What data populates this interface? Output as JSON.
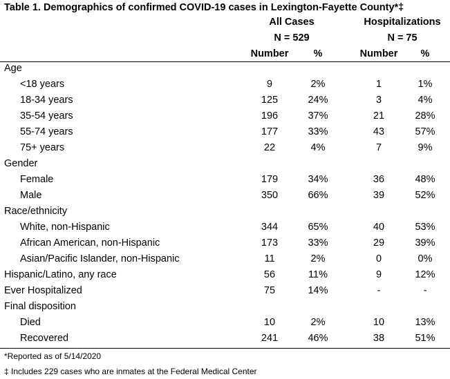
{
  "title": "Table 1. Demographics of confirmed COVID-19 cases in Lexington-Fayette County*‡",
  "groups": {
    "all_cases": {
      "label": "All Cases",
      "n": "N = 529"
    },
    "hospitalizations": {
      "label": "Hospitalizations",
      "n": "N = 75"
    }
  },
  "columns": {
    "number1": "Number",
    "pct1": "%",
    "number2": "Number",
    "pct2": "%"
  },
  "rows": [
    {
      "label": "Age",
      "indent": false,
      "values": [
        "",
        "",
        "",
        ""
      ]
    },
    {
      "label": "<18 years",
      "indent": true,
      "values": [
        "9",
        "2%",
        "1",
        "1%"
      ]
    },
    {
      "label": "18-34 years",
      "indent": true,
      "values": [
        "125",
        "24%",
        "3",
        "4%"
      ]
    },
    {
      "label": "35-54 years",
      "indent": true,
      "values": [
        "196",
        "37%",
        "21",
        "28%"
      ]
    },
    {
      "label": "55-74 years",
      "indent": true,
      "values": [
        "177",
        "33%",
        "43",
        "57%"
      ]
    },
    {
      "label": "75+ years",
      "indent": true,
      "values": [
        "22",
        "4%",
        "7",
        "9%"
      ]
    },
    {
      "label": "Gender",
      "indent": false,
      "values": [
        "",
        "",
        "",
        ""
      ]
    },
    {
      "label": "Female",
      "indent": true,
      "values": [
        "179",
        "34%",
        "36",
        "48%"
      ]
    },
    {
      "label": "Male",
      "indent": true,
      "values": [
        "350",
        "66%",
        "39",
        "52%"
      ]
    },
    {
      "label": "Race/ethnicity",
      "indent": false,
      "values": [
        "",
        "",
        "",
        ""
      ]
    },
    {
      "label": "White, non-Hispanic",
      "indent": true,
      "values": [
        "344",
        "65%",
        "40",
        "53%"
      ]
    },
    {
      "label": "African American, non-Hispanic",
      "indent": true,
      "values": [
        "173",
        "33%",
        "29",
        "39%"
      ]
    },
    {
      "label": "Asian/Pacific Islander, non-Hispanic",
      "indent": true,
      "values": [
        "11",
        "2%",
        "0",
        "0%"
      ]
    },
    {
      "label": "Hispanic/Latino, any race",
      "indent": false,
      "values": [
        "56",
        "11%",
        "9",
        "12%"
      ]
    },
    {
      "label": "Ever Hospitalized",
      "indent": false,
      "values": [
        "75",
        "14%",
        "-",
        "-"
      ]
    },
    {
      "label": "Final disposition",
      "indent": false,
      "values": [
        "",
        "",
        "",
        ""
      ]
    },
    {
      "label": "Died",
      "indent": true,
      "values": [
        "10",
        "2%",
        "10",
        "13%"
      ]
    },
    {
      "label": "Recovered",
      "indent": true,
      "values": [
        "241",
        "46%",
        "38",
        "51%"
      ]
    }
  ],
  "footnotes": [
    "*Reported as of 5/14/2020",
    "‡ Includes 229 cases who are inmates at the Federal Medical Center"
  ]
}
